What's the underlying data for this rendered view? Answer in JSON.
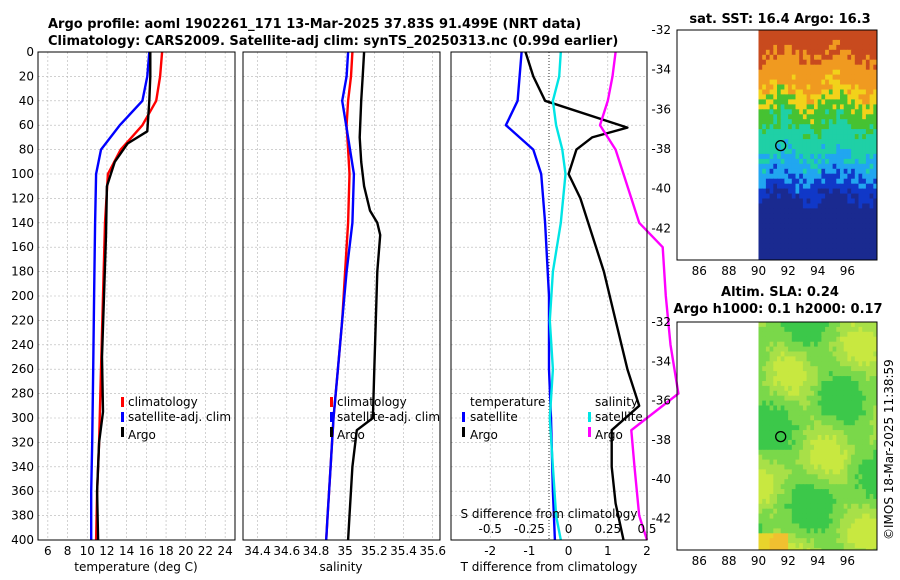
{
  "header": {
    "title_line1": "Argo profile: aoml 1902261_171 13-Mar-2025 37.83S 91.499E (NRT data)",
    "title_line2": "Climatology: CARS2009. Satellite-adj clim: synTS_20250313.nc (0.99d earlier)"
  },
  "side_stamp": "©IMOS 18-Mar-2025 11:38:59",
  "colors": {
    "climatology": "#ff0000",
    "satellite": "#0000ff",
    "argo": "#000000",
    "s_satellite": "#00e5e5",
    "s_salinity": "#ff00ff"
  },
  "chart_data": [
    {
      "type": "line",
      "xlabel": "temperature (deg C)",
      "ylabel": "",
      "xlim": [
        5,
        25
      ],
      "ylim": [
        400,
        0
      ],
      "x_ticks": [
        6,
        8,
        10,
        12,
        14,
        16,
        18,
        20,
        22,
        24
      ],
      "y_ticks": [
        0,
        20,
        40,
        60,
        80,
        100,
        120,
        140,
        160,
        180,
        200,
        220,
        240,
        260,
        280,
        300,
        320,
        340,
        360,
        380,
        400
      ],
      "legend": [
        "climatology",
        "satellite-adj. clim",
        "Argo"
      ],
      "series": [
        {
          "name": "climatology",
          "points": [
            [
              17.6,
              0
            ],
            [
              17.4,
              20
            ],
            [
              17,
              40
            ],
            [
              15.6,
              60
            ],
            [
              13.4,
              80
            ],
            [
              12.1,
              100
            ],
            [
              11.8,
              140
            ],
            [
              11.6,
              200
            ],
            [
              11.4,
              260
            ],
            [
              11.2,
              320
            ],
            [
              11,
              360
            ],
            [
              10.9,
              400
            ]
          ]
        },
        {
          "name": "satellite-adj. clim",
          "points": [
            [
              16.3,
              0
            ],
            [
              16.1,
              20
            ],
            [
              15.6,
              40
            ],
            [
              13.3,
              60
            ],
            [
              11.4,
              80
            ],
            [
              10.9,
              100
            ],
            [
              10.8,
              140
            ],
            [
              10.7,
              200
            ],
            [
              10.6,
              260
            ],
            [
              10.5,
              320
            ],
            [
              10.4,
              360
            ],
            [
              10.4,
              400
            ]
          ]
        },
        {
          "name": "Argo",
          "points": [
            [
              16.4,
              0
            ],
            [
              16.4,
              20
            ],
            [
              16.3,
              40
            ],
            [
              16.1,
              65
            ],
            [
              14.1,
              75
            ],
            [
              12.8,
              90
            ],
            [
              12,
              110
            ],
            [
              11.9,
              150
            ],
            [
              11.7,
              200
            ],
            [
              11.5,
              250
            ],
            [
              11.6,
              295
            ],
            [
              11.2,
              320
            ],
            [
              11,
              360
            ],
            [
              11.1,
              400
            ]
          ]
        }
      ]
    },
    {
      "type": "line",
      "xlabel": "salinity",
      "ylabel": "",
      "xlim": [
        34.3,
        35.65
      ],
      "ylim": [
        400,
        0
      ],
      "x_ticks": [
        34.4,
        34.6,
        34.8,
        35,
        35.2,
        35.4,
        35.6
      ],
      "y_ticks": [
        0,
        40,
        80,
        120,
        160,
        200,
        240,
        280,
        320,
        360,
        400
      ],
      "legend": [
        "climatology",
        "satellite-adj. clim",
        "Argo"
      ],
      "series": [
        {
          "name": "climatology",
          "points": [
            [
              35.05,
              0
            ],
            [
              35.04,
              20
            ],
            [
              35.02,
              40
            ],
            [
              35.01,
              60
            ],
            [
              35.02,
              80
            ],
            [
              35.03,
              100
            ],
            [
              35.02,
              140
            ],
            [
              35,
              180
            ],
            [
              34.98,
              220
            ],
            [
              34.95,
              260
            ],
            [
              34.92,
              300
            ],
            [
              34.9,
              340
            ],
            [
              34.88,
              380
            ],
            [
              34.87,
              400
            ]
          ]
        },
        {
          "name": "satellite-adj. clim",
          "points": [
            [
              35.02,
              0
            ],
            [
              35.01,
              20
            ],
            [
              34.98,
              40
            ],
            [
              35.02,
              70
            ],
            [
              35.06,
              100
            ],
            [
              35.05,
              140
            ],
            [
              35.01,
              180
            ],
            [
              34.98,
              220
            ],
            [
              34.95,
              260
            ],
            [
              34.92,
              300
            ],
            [
              34.9,
              340
            ],
            [
              34.88,
              380
            ],
            [
              34.87,
              400
            ]
          ]
        },
        {
          "name": "Argo",
          "points": [
            [
              35.13,
              0
            ],
            [
              35.12,
              20
            ],
            [
              35.11,
              40
            ],
            [
              35.1,
              70
            ],
            [
              35.11,
              90
            ],
            [
              35.13,
              110
            ],
            [
              35.17,
              130
            ],
            [
              35.22,
              140
            ],
            [
              35.24,
              150
            ],
            [
              35.22,
              180
            ],
            [
              35.21,
              220
            ],
            [
              35.2,
              260
            ],
            [
              35.19,
              300
            ],
            [
              35.08,
              310
            ],
            [
              35.05,
              340
            ],
            [
              35.03,
              380
            ],
            [
              35.02,
              400
            ]
          ]
        }
      ]
    },
    {
      "type": "line",
      "xlabel": "T difference from climatology",
      "top_axis_label": "S difference from climatology",
      "xlim": [
        -3,
        2
      ],
      "ylim": [
        400,
        0
      ],
      "x_ticks": [
        -2,
        -1,
        0,
        1,
        2
      ],
      "s_ticks_labels": [
        "-0.5",
        "-0.25",
        "0",
        "0.25",
        "0.5"
      ],
      "legend_left_title": "temperature",
      "legend_left": [
        "satellite",
        "Argo"
      ],
      "legend_right_title": "salinity",
      "legend_right": [
        "satellite",
        "Argo"
      ],
      "series": [
        {
          "name": "temperature satellite",
          "points": [
            [
              -1.2,
              0
            ],
            [
              -1.25,
              20
            ],
            [
              -1.3,
              40
            ],
            [
              -1.6,
              60
            ],
            [
              -0.9,
              80
            ],
            [
              -0.7,
              100
            ],
            [
              -0.6,
              140
            ],
            [
              -0.5,
              200
            ],
            [
              -0.5,
              260
            ],
            [
              -0.45,
              300
            ],
            [
              -0.4,
              360
            ],
            [
              -0.35,
              400
            ]
          ]
        },
        {
          "name": "temperature Argo",
          "points": [
            [
              -1.1,
              0
            ],
            [
              -0.9,
              20
            ],
            [
              -0.6,
              40
            ],
            [
              1.5,
              62
            ],
            [
              0.6,
              70
            ],
            [
              0.2,
              80
            ],
            [
              0,
              100
            ],
            [
              0.3,
              120
            ],
            [
              0.5,
              140
            ],
            [
              0.9,
              180
            ],
            [
              1.2,
              220
            ],
            [
              1.5,
              260
            ],
            [
              1.8,
              290
            ],
            [
              1.1,
              310
            ],
            [
              1.1,
              340
            ],
            [
              1.2,
              370
            ],
            [
              1.4,
              400
            ]
          ]
        },
        {
          "name": "salinity satellite",
          "points": [
            [
              -0.05,
              0
            ],
            [
              -0.06,
              20
            ],
            [
              -0.1,
              40
            ],
            [
              -0.08,
              60
            ],
            [
              -0.04,
              80
            ],
            [
              -0.02,
              100
            ],
            [
              -0.05,
              140
            ],
            [
              -0.1,
              180
            ],
            [
              -0.12,
              220
            ],
            [
              -0.1,
              260
            ],
            [
              -0.12,
              300
            ],
            [
              -0.1,
              340
            ],
            [
              -0.08,
              380
            ],
            [
              -0.05,
              400
            ]
          ]
        },
        {
          "name": "salinity Argo",
          "points": [
            [
              0.3,
              0
            ],
            [
              0.28,
              20
            ],
            [
              0.25,
              40
            ],
            [
              0.2,
              60
            ],
            [
              0.3,
              80
            ],
            [
              0.35,
              100
            ],
            [
              0.45,
              140
            ],
            [
              0.6,
              160
            ],
            [
              0.62,
              200
            ],
            [
              0.65,
              240
            ],
            [
              0.7,
              280
            ],
            [
              0.4,
              310
            ],
            [
              0.42,
              340
            ],
            [
              0.45,
              380
            ],
            [
              0.5,
              400
            ]
          ]
        }
      ]
    },
    {
      "type": "heatmap",
      "title": "sat. SST: 16.4 Argo: 16.3",
      "xlim": [
        84.5,
        98
      ],
      "ylim": [
        -43.6,
        -32
      ],
      "x_ticks": [
        86,
        88,
        90,
        92,
        94,
        96
      ],
      "y_ticks": [
        -32,
        -34,
        -36,
        -38,
        -40,
        -42
      ],
      "marker": {
        "lon": 91.5,
        "lat": -37.83
      },
      "data_start_lon": 90
    },
    {
      "type": "heatmap",
      "title_line1": "Altim. SLA: 0.24",
      "title_line2": "Argo h1000: 0.1 h2000: 0.17",
      "xlim": [
        84.5,
        98
      ],
      "ylim": [
        -43.6,
        -32
      ],
      "x_ticks": [
        86,
        88,
        90,
        92,
        94,
        96
      ],
      "y_ticks": [
        -32,
        -34,
        -36,
        -38,
        -40,
        -42
      ],
      "marker": {
        "lon": 91.5,
        "lat": -37.83
      },
      "data_start_lon": 90
    }
  ]
}
